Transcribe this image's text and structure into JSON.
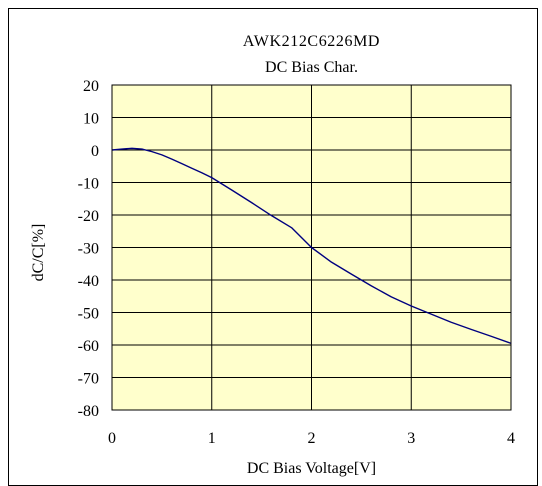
{
  "chart_data": {
    "type": "line",
    "title": "AWK212C6226MD",
    "subtitle": "DC Bias Char.",
    "xlabel": "DC Bias Voltage[V]",
    "ylabel": "dC/C[%]",
    "xlim": [
      0,
      4
    ],
    "ylim": [
      -80,
      20
    ],
    "x_ticks": [
      "0",
      "1",
      "2",
      "3",
      "4"
    ],
    "y_ticks": [
      "20",
      "10",
      "0",
      "-10",
      "-20",
      "-30",
      "-40",
      "-50",
      "-60",
      "-70",
      "-80"
    ],
    "grid": true,
    "plot_background": "#ffffcc",
    "series": [
      {
        "color": "#000080",
        "x": [
          0,
          0.1,
          0.2,
          0.3,
          0.4,
          0.5,
          0.6,
          0.7,
          0.8,
          0.9,
          1.0,
          1.2,
          1.4,
          1.6,
          1.8,
          2.0,
          2.2,
          2.4,
          2.6,
          2.8,
          3.0,
          3.2,
          3.4,
          3.6,
          3.8,
          4.0
        ],
        "y": [
          0,
          0.3,
          0.5,
          0.3,
          -0.5,
          -1.5,
          -2.8,
          -4.2,
          -5.6,
          -7.0,
          -8.5,
          -12.3,
          -16.2,
          -20.2,
          -23.9,
          -30.0,
          -34.5,
          -38.2,
          -41.8,
          -45.2,
          -48.0,
          -50.5,
          -53.0,
          -55.2,
          -57.3,
          -59.5
        ]
      }
    ]
  }
}
